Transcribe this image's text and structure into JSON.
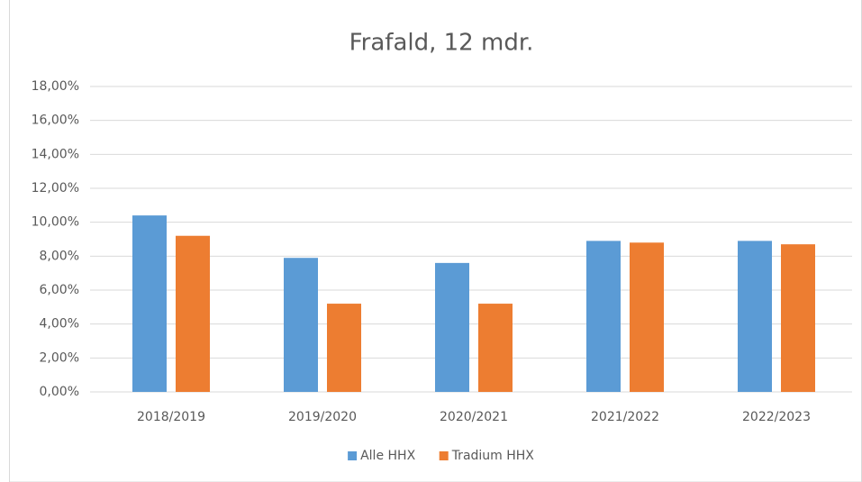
{
  "chart_data": {
    "type": "bar",
    "title": "Frafald, 12 mdr.",
    "categories": [
      "2018/2019",
      "2019/2020",
      "2020/2021",
      "2021/2022",
      "2022/2023"
    ],
    "series": [
      {
        "name": "Alle HHX",
        "color": "#5b9bd5",
        "values": [
          10.4,
          7.9,
          7.6,
          8.9,
          8.9
        ]
      },
      {
        "name": "Tradium HHX",
        "color": "#ed7d31",
        "values": [
          9.2,
          5.2,
          5.2,
          8.8,
          8.7
        ]
      }
    ],
    "ylim": [
      0,
      18
    ],
    "yticks": [
      {
        "value": 0,
        "label": "0,00%"
      },
      {
        "value": 2,
        "label": "2,00%"
      },
      {
        "value": 4,
        "label": "4,00%"
      },
      {
        "value": 6,
        "label": "6,00%"
      },
      {
        "value": 8,
        "label": "8,00%"
      },
      {
        "value": 10,
        "label": "10,00%"
      },
      {
        "value": 12,
        "label": "12,00%"
      },
      {
        "value": 14,
        "label": "14,00%"
      },
      {
        "value": 16,
        "label": "16,00%"
      },
      {
        "value": 18,
        "label": "18,00%"
      }
    ],
    "grid": true,
    "legend": "bottom"
  }
}
